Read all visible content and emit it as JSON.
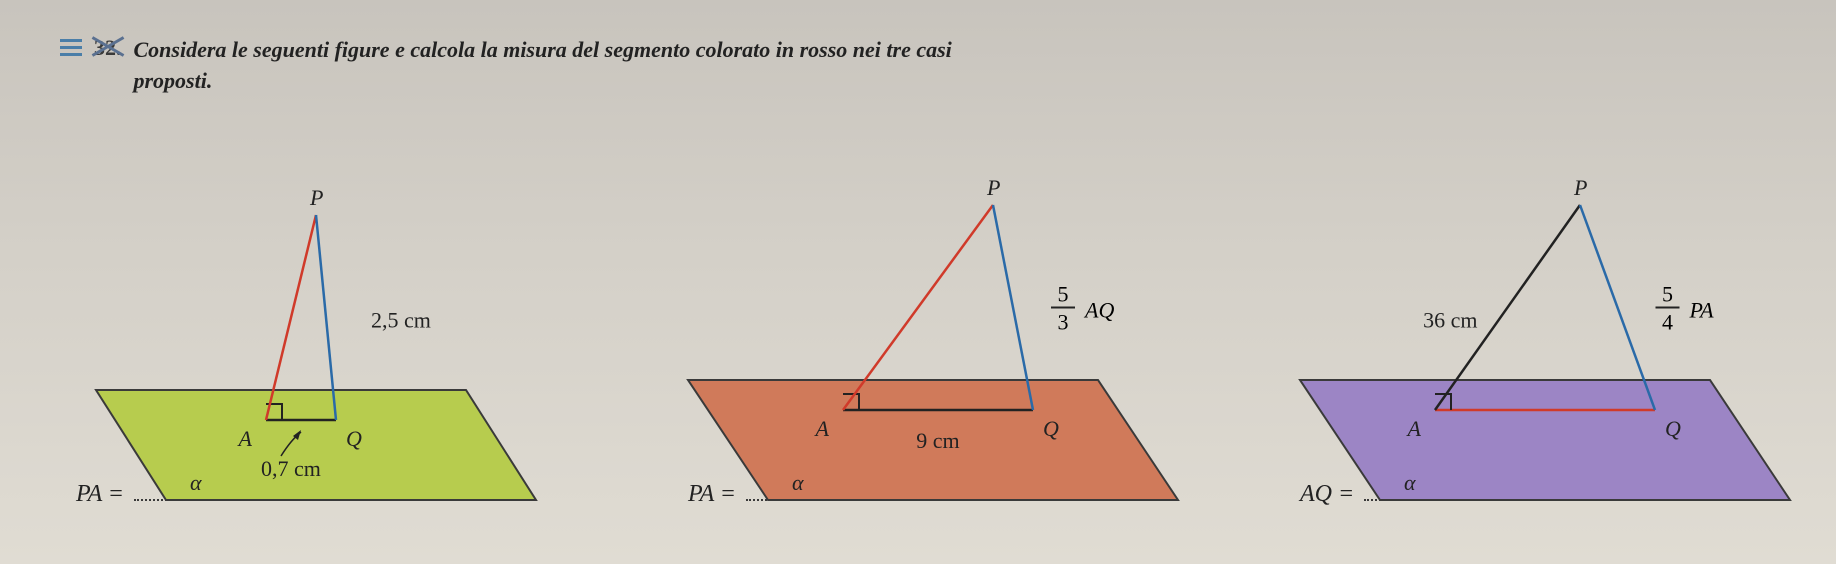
{
  "problem": {
    "number": "32.",
    "text_line1": "Considera le seguenti figure e calcola la misura del segmento colorato in rosso nei tre casi",
    "text_line2": "proposti."
  },
  "figures": [
    {
      "id": "fig1",
      "plane_fill": "#b7cc4e",
      "plane_stroke": "#3a3a3a",
      "apex_label": "P",
      "point_A": "A",
      "point_Q": "Q",
      "alpha": "α",
      "pa_label": "2,5 cm",
      "aq_label": "0,7 cm",
      "pq_is_red": false,
      "pa_is_red": true,
      "answer_var": "PA",
      "plane_pts": "80,270 450,270 520,380 150,380",
      "A": [
        250,
        300
      ],
      "Q": [
        320,
        300
      ],
      "P": [
        300,
        95
      ],
      "fontsize": 22
    },
    {
      "id": "fig2",
      "plane_fill": "#d07a5a",
      "plane_stroke": "#3a3a3a",
      "apex_label": "P",
      "point_A": "A",
      "point_Q": "Q",
      "alpha": "α",
      "aq_label": "9 cm",
      "pq_frac_num": "5",
      "pq_frac_den": "3",
      "pq_suffix": "AQ",
      "pa_is_red": true,
      "answer_var": "PA",
      "plane_pts": "60,260 470,260 550,380 140,380",
      "A": [
        215,
        290
      ],
      "Q": [
        405,
        290
      ],
      "P": [
        365,
        85
      ],
      "fontsize": 22
    },
    {
      "id": "fig3",
      "plane_fill": "#9c85c5",
      "plane_stroke": "#3a3a3a",
      "apex_label": "P",
      "point_A": "A",
      "point_Q": "Q",
      "alpha": "α",
      "pa_label": "36 cm",
      "pq_frac_num": "5",
      "pq_frac_den": "4",
      "pq_suffix": "PA",
      "aq_is_red": true,
      "answer_var": "AQ",
      "plane_pts": "60,260 470,260 550,380 140,380",
      "A": [
        195,
        290
      ],
      "Q": [
        415,
        290
      ],
      "P": [
        340,
        85
      ],
      "fontsize": 22
    }
  ],
  "colors": {
    "red": "#d03a2a",
    "blue": "#2a6aa8",
    "black": "#222222",
    "plane_outline": "#333"
  }
}
